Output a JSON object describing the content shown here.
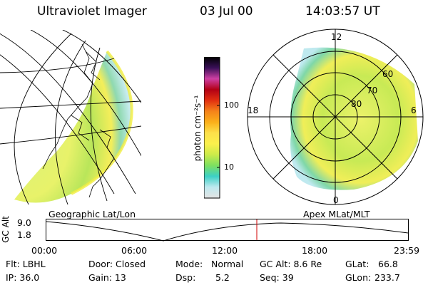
{
  "header": {
    "instrument": "Ultraviolet Imager",
    "date": "03 Jul 00",
    "time": "14:03:57 UT"
  },
  "colorbar": {
    "unit_label": "photon cm⁻²s⁻¹",
    "ticks": [
      "100",
      "10"
    ],
    "gradient": [
      "#e4e4e4",
      "#bfe9ef",
      "#3cd0c6",
      "#7de060",
      "#cceb4a",
      "#fbf04c",
      "#fde04a",
      "#fbb01a",
      "#f5831a",
      "#e23010",
      "#b20015",
      "#ce3fa4",
      "#3a1058",
      "#000000"
    ]
  },
  "polar": {
    "hour_labels": [
      "12",
      "18",
      "6",
      "0"
    ],
    "lat_labels": [
      "60",
      "70",
      "80"
    ]
  },
  "panel_labels": {
    "left": "Geographic Lat/Lon",
    "right": "Apex MLat/MLT"
  },
  "timeline": {
    "ylabel": "GC Alt",
    "yticks": [
      "9.0",
      "1.8"
    ],
    "xticks": [
      "00:00",
      "06:00",
      "12:00",
      "18:00",
      "23:59"
    ],
    "marker_time": "14:04"
  },
  "status": {
    "flt": "Flt: LBHL",
    "ip": "IP: 36.0",
    "door": "Door: Closed",
    "gain": "Gain: 13",
    "mode_label": "Mode:",
    "mode_value": "Normal",
    "dsp_label": "Dsp:",
    "dsp_value": "5.2",
    "gcalt": "GC Alt: 8.6 Re",
    "seq": "Seq: 39",
    "glat_label": "GLat:",
    "glat_value": "66.8",
    "glon_label": "GLon:",
    "glon_value": "233.7"
  }
}
